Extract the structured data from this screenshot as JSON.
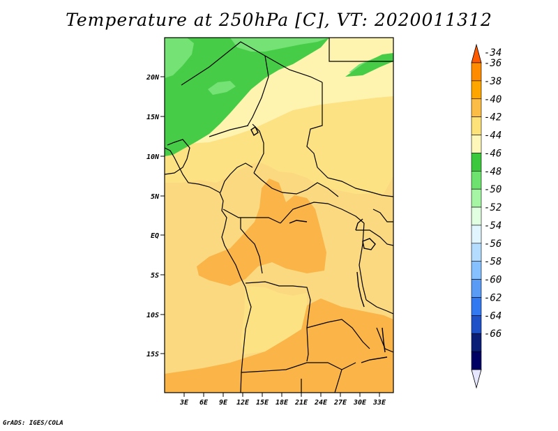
{
  "map": {
    "title": "Temperature at 250hPa [C], VT: 2020011312",
    "credit": "GrADS: IGES/COLA",
    "lat_labels": [
      "20N",
      "15N",
      "10N",
      "5N",
      "EQ",
      "5S",
      "10S",
      "15S"
    ],
    "lon_labels": [
      "3E",
      "6E",
      "9E",
      "12E",
      "15E",
      "18E",
      "21E",
      "24E",
      "27E",
      "30E",
      "33E"
    ],
    "colorbar": {
      "labels": [
        "-34",
        "-36",
        "-38",
        "-40",
        "-42",
        "-44",
        "-46",
        "-48",
        "-50",
        "-52",
        "-54",
        "-56",
        "-58",
        "-60",
        "-62",
        "-64",
        "-66"
      ],
      "colors": [
        "#ff5a00",
        "#ff8c00",
        "#ffa500",
        "#fbbd46",
        "#fde27a",
        "#fff6b9",
        "#3cc83c",
        "#6ee26e",
        "#a5f5a5",
        "#e1ffe1",
        "#e1f5ff",
        "#b4dcff",
        "#86c0ff",
        "#5a9cf5",
        "#3278f0",
        "#1e50c8",
        "#0a1e78",
        "#000064",
        "#e6e6ff"
      ]
    }
  },
  "chart_data": {
    "type": "heatmap",
    "title": "Temperature at 250hPa [C], VT: 2020011312",
    "variable": "Temperature at 250hPa",
    "units": "C",
    "valid_time": "2020011312",
    "lon_range": [
      0,
      35
    ],
    "lat_range": [
      -20,
      25
    ],
    "levels": [
      -34,
      -36,
      -38,
      -40,
      -42,
      -44,
      -46,
      -48,
      -50,
      -52,
      -54,
      -56,
      -58,
      -60,
      -62,
      -64,
      -66
    ],
    "observed_range": [
      -48,
      -38
    ]
  }
}
